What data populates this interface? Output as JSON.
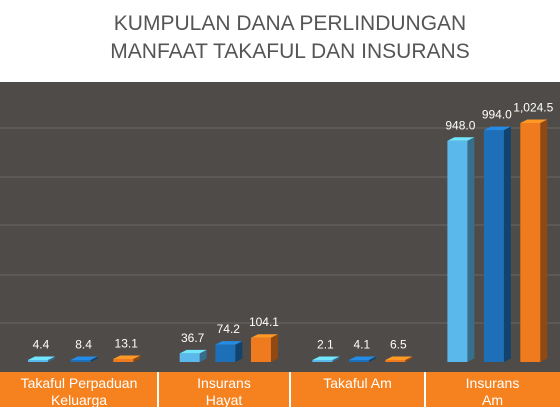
{
  "chart_data": {
    "type": "bar",
    "title": [
      "KUMPULAN DANA PERLINDUNGAN",
      "MANFAAT TAKAFUL DAN INSURANS"
    ],
    "categories": [
      "Takaful Perpaduan Keluarga",
      "Insurans Hayat",
      "Takaful Am",
      "Insurans Am"
    ],
    "series": [
      {
        "color": "#5bb8ea",
        "values": [
          4.4,
          36.7,
          2.1,
          948.0
        ],
        "value_labels": [
          "4.4",
          "36.7",
          "2.1",
          "948.0"
        ]
      },
      {
        "color": "#1d6fb8",
        "values": [
          8.4,
          74.2,
          4.1,
          994.0
        ],
        "value_labels": [
          "8.4",
          "74.2",
          "4.1",
          "994.0"
        ]
      },
      {
        "color": "#f07a1e",
        "values": [
          13.1,
          104.1,
          6.5,
          1024.5
        ],
        "value_labels": [
          "13.1",
          "104.1",
          "6.5",
          "1,024.5"
        ]
      }
    ],
    "ylim": [
      0,
      1200
    ]
  }
}
